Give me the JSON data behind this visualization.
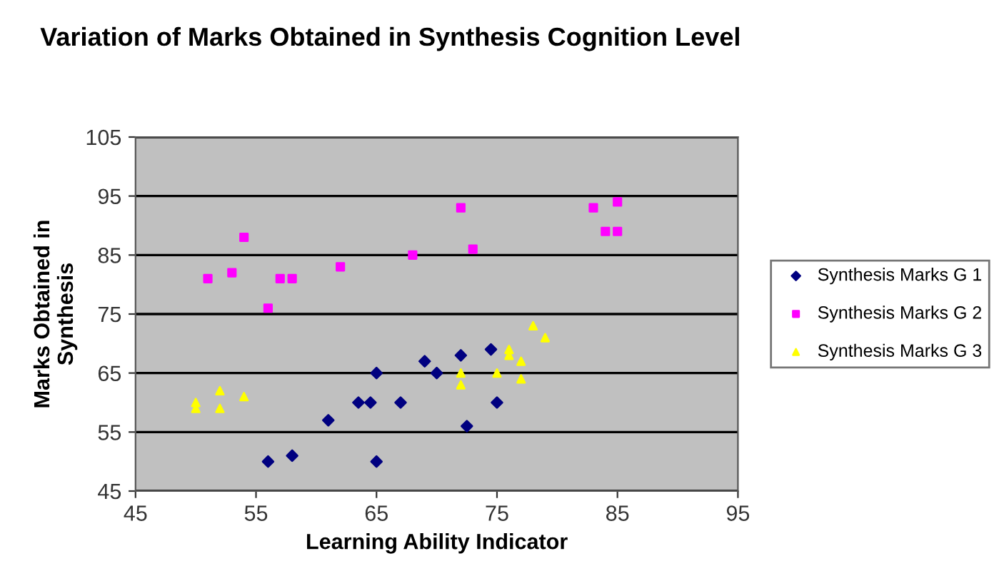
{
  "chart_data": {
    "type": "scatter",
    "title": "Variation of Marks Obtained in Synthesis Cognition Level",
    "xlabel": "Learning Ability Indicator",
    "ylabel": "Marks Obtained in\nSynthesis",
    "xlim": [
      45,
      95
    ],
    "xticks": [
      45,
      55,
      65,
      75,
      85,
      95
    ],
    "ylim": [
      45,
      105
    ],
    "yticks": [
      45,
      55,
      65,
      75,
      85,
      95,
      105
    ],
    "grid": "y",
    "legend": "right",
    "series": [
      {
        "name": "Synthesis Marks G 1",
        "color": "#000080",
        "marker": "diamond",
        "x": [
          56,
          58,
          61,
          63.5,
          64.5,
          65,
          65,
          67,
          69,
          70,
          72,
          72.5,
          74.5,
          75
        ],
        "values": [
          50,
          51,
          57,
          60,
          60,
          65,
          50,
          60,
          67,
          65,
          68,
          56,
          69,
          60
        ]
      },
      {
        "name": "Synthesis Marks G 2",
        "color": "#ff00ff",
        "marker": "square",
        "x": [
          51,
          53,
          54,
          56,
          57,
          58,
          62,
          68,
          72,
          73,
          83,
          84,
          85,
          85
        ],
        "values": [
          81,
          82,
          88,
          76,
          81,
          81,
          83,
          85,
          93,
          86,
          93,
          89,
          94,
          89
        ]
      },
      {
        "name": "Synthesis Marks G 3",
        "color": "#ffff00",
        "marker": "triangle",
        "x": [
          50,
          50,
          52,
          52,
          54,
          72,
          72,
          75,
          76,
          76,
          77,
          77,
          78,
          79
        ],
        "values": [
          59,
          60,
          59,
          62,
          61,
          65,
          63,
          65,
          68,
          69,
          67,
          64,
          73,
          71
        ]
      }
    ]
  }
}
